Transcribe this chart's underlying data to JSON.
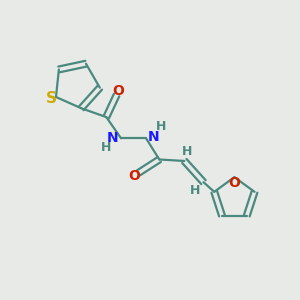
{
  "background_color": "#e8eae8",
  "bond_color": "#4a8a7e",
  "S_color": "#ccaa00",
  "O_color": "#cc2200",
  "N_color": "#1a1aff",
  "H_color": "#4a8a7e",
  "bond_width": 1.6,
  "font_size": 10,
  "figsize": [
    3.0,
    3.0
  ],
  "dpi": 100,
  "xlim": [
    0,
    10
  ],
  "ylim": [
    0,
    10
  ]
}
